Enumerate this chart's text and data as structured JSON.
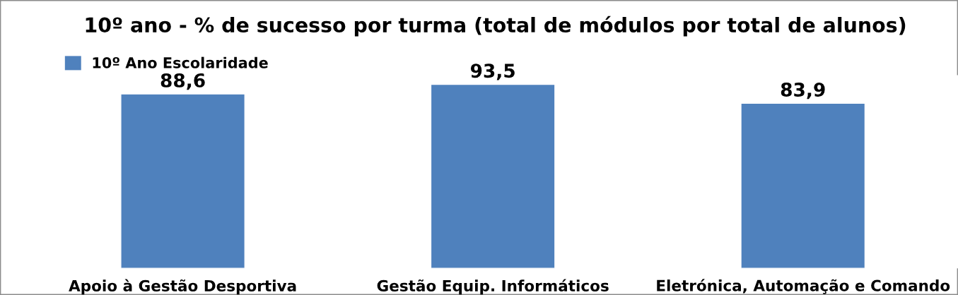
{
  "chart_data": {
    "type": "bar",
    "title": "10º ano - % de sucesso por turma (total de módulos por total de alunos)",
    "categories": [
      "Apoio à Gestão Desportiva",
      "Gestão Equip. Informáticos",
      "Eletrónica, Automação e Comando"
    ],
    "series": [
      {
        "name": "10º Ano Escolaridade",
        "color": "#4f81bd",
        "values": [
          88.6,
          93.5,
          83.9
        ],
        "value_labels": [
          "88,6",
          "93,5",
          "83,9"
        ]
      }
    ],
    "tick_labels": "x",
    "grid": false,
    "legend": "top left"
  }
}
